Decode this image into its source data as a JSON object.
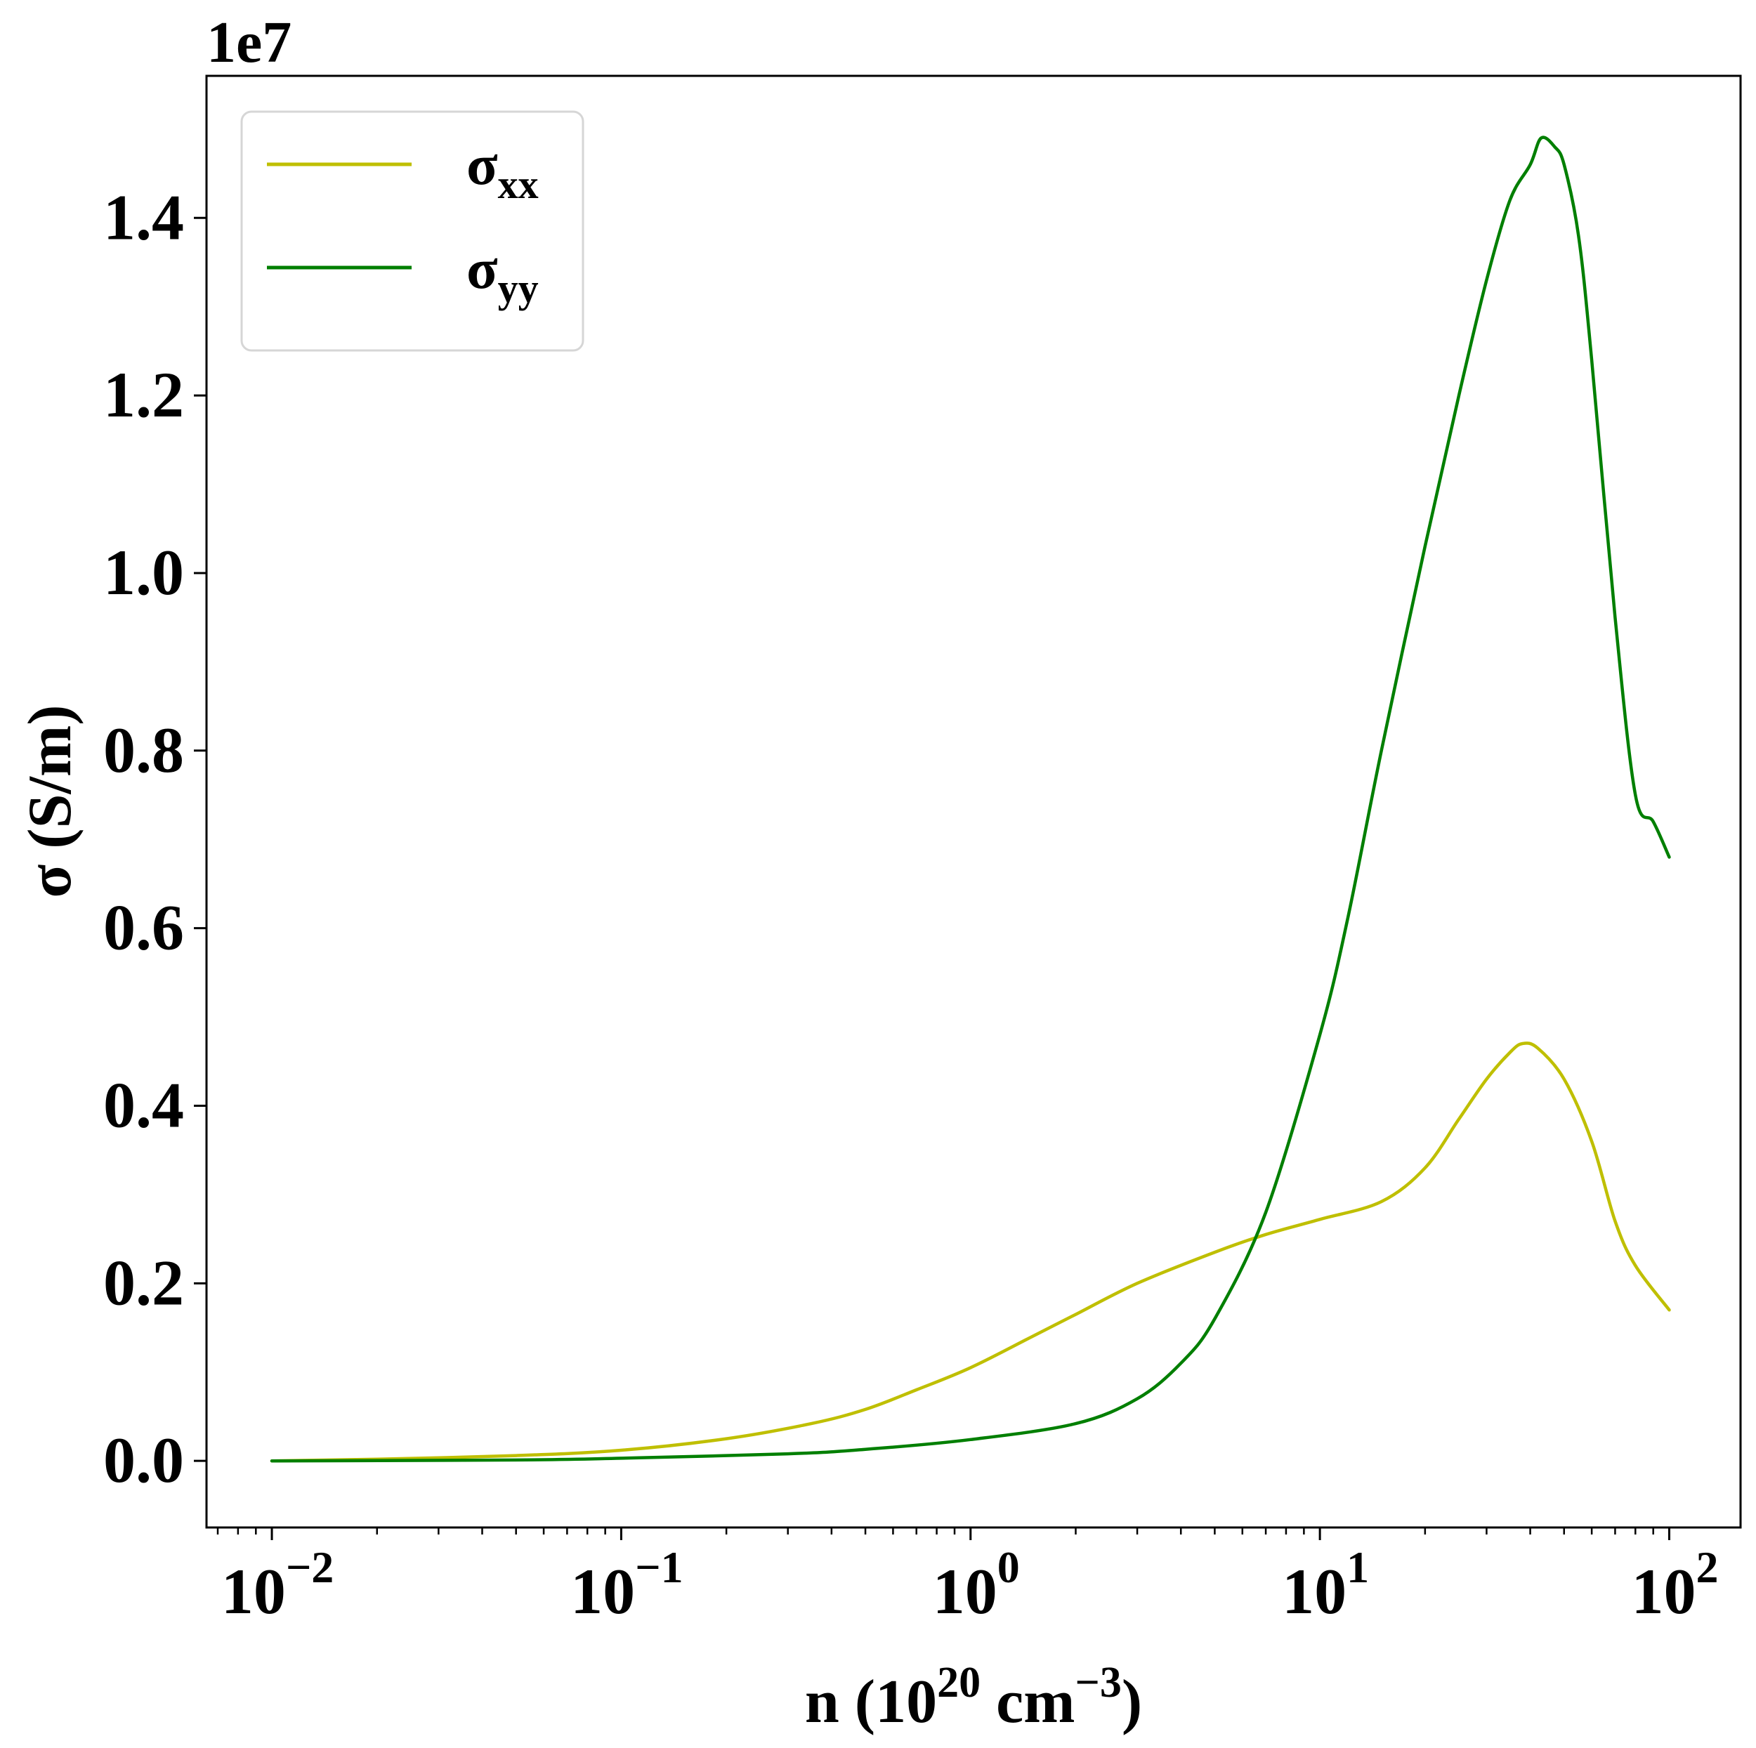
{
  "chart_data": {
    "type": "line",
    "xlabel": {
      "base": "n (10",
      "exp1": "20",
      "mid": " cm",
      "exp2": "−3",
      "end": ")"
    },
    "ylabel": "σ (S/m)",
    "y_offset_label": "1e7",
    "xscale": "log",
    "xlim": [
      0.0065,
      160
    ],
    "ylim": [
      -0.075,
      1.56
    ],
    "y_unit_multiplier": 10000000,
    "x_ticks": [
      {
        "value": 0.01,
        "base": "10",
        "exp": "−2"
      },
      {
        "value": 0.1,
        "base": "10",
        "exp": "−1"
      },
      {
        "value": 1,
        "base": "10",
        "exp": "0"
      },
      {
        "value": 10,
        "base": "10",
        "exp": "1"
      },
      {
        "value": 100,
        "base": "10",
        "exp": "2"
      }
    ],
    "y_ticks": [
      {
        "value": 0.0,
        "label": "0.0"
      },
      {
        "value": 0.2,
        "label": "0.2"
      },
      {
        "value": 0.4,
        "label": "0.4"
      },
      {
        "value": 0.6,
        "label": "0.6"
      },
      {
        "value": 0.8,
        "label": "0.8"
      },
      {
        "value": 1.0,
        "label": "1.0"
      },
      {
        "value": 1.2,
        "label": "1.2"
      },
      {
        "value": 1.4,
        "label": "1.4"
      }
    ],
    "legend_position": "upper-left",
    "grid": false,
    "series": [
      {
        "name": "σ",
        "name_sub": "xx",
        "color": "#bfbf00",
        "x": [
          0.01,
          0.02,
          0.05,
          0.1,
          0.2,
          0.35,
          0.5,
          0.7,
          1,
          1.5,
          2,
          3,
          5,
          7,
          10,
          15,
          20,
          25,
          30,
          35,
          38,
          42,
          50,
          60,
          70,
          80,
          100
        ],
        "y": [
          0.0,
          0.002,
          0.006,
          0.012,
          0.025,
          0.042,
          0.058,
          0.08,
          0.105,
          0.14,
          0.165,
          0.2,
          0.235,
          0.255,
          0.272,
          0.292,
          0.33,
          0.385,
          0.43,
          0.46,
          0.47,
          0.465,
          0.43,
          0.36,
          0.27,
          0.22,
          0.17
        ]
      },
      {
        "name": "σ",
        "name_sub": "yy",
        "color": "#007f00",
        "x": [
          0.01,
          0.05,
          0.1,
          0.3,
          0.5,
          1,
          2,
          3,
          4,
          5,
          7,
          10,
          12,
          15,
          20,
          25,
          30,
          35,
          40,
          43,
          47,
          50,
          55,
          60,
          70,
          80,
          90,
          100
        ],
        "y": [
          0.0,
          0.001,
          0.003,
          0.008,
          0.013,
          0.024,
          0.042,
          0.07,
          0.11,
          0.16,
          0.28,
          0.48,
          0.61,
          0.8,
          1.03,
          1.2,
          1.33,
          1.42,
          1.46,
          1.49,
          1.48,
          1.46,
          1.38,
          1.24,
          0.95,
          0.75,
          0.72,
          0.68
        ]
      }
    ]
  }
}
